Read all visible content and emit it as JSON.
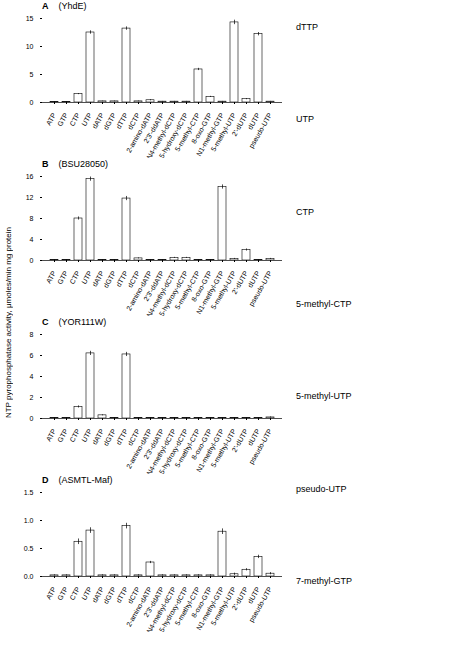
{
  "chart_data": [
    {
      "type": "bar",
      "panel_label": "A",
      "title": "(YhdE)",
      "categories": [
        "ATP",
        "GTP",
        "CTP",
        "UTP",
        "dATP",
        "dGTP",
        "dTTP",
        "dCTP",
        "2-amino-dATP",
        "2'3'-ddATP",
        "N4-methyl-dCTP",
        "5-hydroxy-dCTP",
        "5-methyl-CTP",
        "8-oxo-GTP",
        "N1-methyl-GTP",
        "5-methyl-UTP",
        "2'-dUTP",
        "dUTP",
        "pseudo-UTP"
      ],
      "values": [
        0.1,
        0.1,
        1.5,
        12.5,
        0.2,
        0.2,
        13.2,
        0.2,
        0.4,
        0.15,
        0.15,
        0.15,
        5.9,
        1.0,
        0.15,
        14.3,
        0.6,
        12.2,
        0.15
      ],
      "errors": [
        0.05,
        0.05,
        0.1,
        0.3,
        0.05,
        0.05,
        0.3,
        0.05,
        0.1,
        0.05,
        0.05,
        0.05,
        0.2,
        0.1,
        0.05,
        0.4,
        0.1,
        0.3,
        0.05
      ],
      "color": "#ffffff",
      "ylim": [
        0,
        15
      ],
      "yticks": [
        0,
        5,
        10,
        15
      ],
      "grid": false
    },
    {
      "type": "bar",
      "panel_label": "B",
      "title": "(BSU28050)",
      "categories": [
        "ATP",
        "GTP",
        "CTP",
        "UTP",
        "dATP",
        "dGTP",
        "dTTP",
        "dCTP",
        "2-amino-dATP",
        "2'3'-ddATP",
        "N4-methyl-dCTP",
        "5-hydroxy-dCTP",
        "5-methyl-CTP",
        "8-oxo-GTP",
        "N1-methyl-GTP",
        "5-methyl-UTP",
        "2'-dUTP",
        "dUTP",
        "pseudo-UTP"
      ],
      "values": [
        0.1,
        0.1,
        8.0,
        15.5,
        0.1,
        0.1,
        11.8,
        0.4,
        0.1,
        0.1,
        0.5,
        0.5,
        0.1,
        0.1,
        14.0,
        0.3,
        2.0,
        0.1,
        0.3
      ],
      "errors": [
        0.05,
        0.05,
        0.3,
        0.4,
        0.05,
        0.05,
        0.4,
        0.1,
        0.05,
        0.05,
        0.1,
        0.1,
        0.05,
        0.05,
        0.4,
        0.1,
        0.2,
        0.05,
        0.1
      ],
      "color": "#ffffff",
      "ylim": [
        0,
        16
      ],
      "yticks": [
        0,
        4,
        8,
        12,
        16
      ],
      "grid": false
    },
    {
      "type": "bar",
      "panel_label": "C",
      "title": "(YOR111W)",
      "categories": [
        "ATP",
        "GTP",
        "CTP",
        "UTP",
        "dATP",
        "dGTP",
        "dTTP",
        "dCTP",
        "2-amino-dATP",
        "2'3'-ddATP",
        "N4-methyl-dCTP",
        "5-hydroxy-dCTP",
        "5-methyl-CTP",
        "8-oxo-GTP",
        "N1-methyl-GTP",
        "5-methyl-UTP",
        "2'-dUTP",
        "dUTP",
        "pseudo-UTP"
      ],
      "values": [
        0.05,
        0.05,
        1.1,
        6.2,
        0.3,
        0.05,
        6.1,
        0.05,
        0.05,
        0.05,
        0.05,
        0.05,
        0.05,
        0.05,
        0.05,
        0.05,
        0.05,
        0.05,
        0.1
      ],
      "errors": [
        0.02,
        0.02,
        0.1,
        0.2,
        0.05,
        0.02,
        0.2,
        0.02,
        0.02,
        0.02,
        0.02,
        0.02,
        0.02,
        0.02,
        0.02,
        0.02,
        0.02,
        0.02,
        0.05
      ],
      "color": "#ffffff",
      "ylim": [
        0,
        8
      ],
      "yticks": [
        0,
        2,
        4,
        6,
        8
      ],
      "grid": false
    },
    {
      "type": "bar",
      "panel_label": "D",
      "title": "(ASMTL-Maf)",
      "categories": [
        "ATP",
        "GTP",
        "CTP",
        "UTP",
        "dATP",
        "dGTP",
        "dTTP",
        "dCTP",
        "2-amino-dATP",
        "2'3'-ddATP",
        "N4-methyl-dCTP",
        "5-hydroxy-dCTP",
        "5-methyl-CTP",
        "8-oxo-GTP",
        "N1-methyl-GTP",
        "5-methyl-UTP",
        "2'-dUTP",
        "dUTP",
        "pseudo-UTP"
      ],
      "values": [
        0.02,
        0.02,
        0.62,
        0.82,
        0.02,
        0.02,
        0.9,
        0.02,
        0.25,
        0.02,
        0.02,
        0.02,
        0.02,
        0.02,
        0.8,
        0.04,
        0.12,
        0.35,
        0.05
      ],
      "errors": [
        0.01,
        0.01,
        0.05,
        0.05,
        0.01,
        0.01,
        0.05,
        0.01,
        0.02,
        0.01,
        0.01,
        0.01,
        0.01,
        0.01,
        0.05,
        0.02,
        0.02,
        0.03,
        0.02
      ],
      "color": "#ffffff",
      "ylim": [
        0,
        1.5
      ],
      "yticks": [
        {
          "value": 0,
          "label": "0.0"
        },
        0.5,
        {
          "value": 1,
          "label": "1.0"
        },
        1.5
      ],
      "grid": false
    }
  ],
  "ylabel": "NTP pyrophosphatase activity,  μmoles/min mg protein",
  "annotations": [
    "dTTP",
    "UTP",
    "CTP",
    "5-methyl-CTP",
    "5-methyl-UTP",
    "pseudo-UTP",
    "7-methyl-GTP"
  ]
}
